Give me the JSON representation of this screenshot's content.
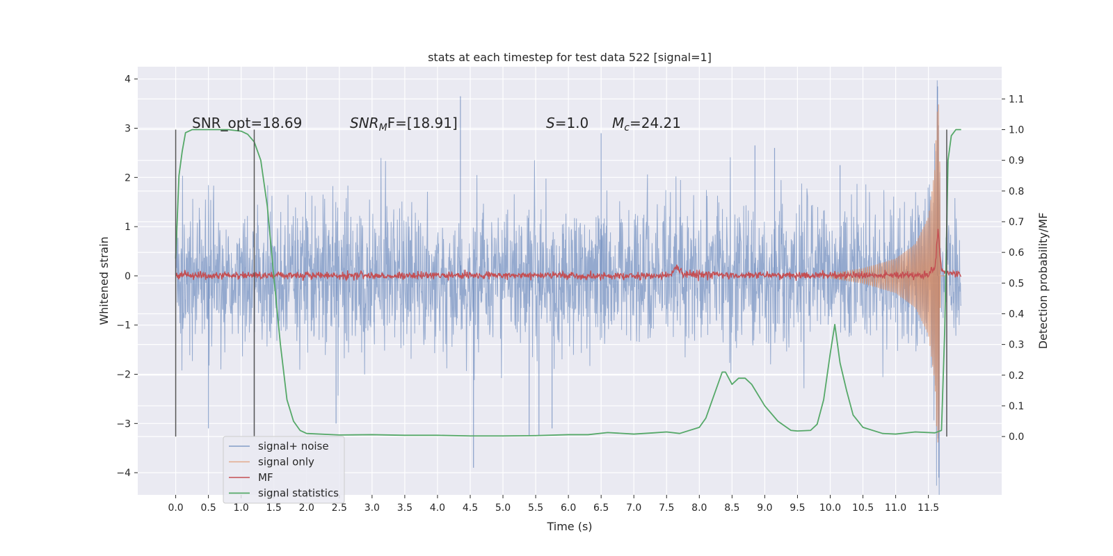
{
  "chart_data": {
    "type": "line",
    "title": "stats at each timestep for test data 522 [signal=1]",
    "xlabel": "Time (s)",
    "ylabel": "Whitened strain",
    "y2label": "Detection probability/MF",
    "xlim": [
      -0.58,
      12.62
    ],
    "ylim": [
      -4.45,
      4.25
    ],
    "y2lim": [
      -0.19,
      1.205
    ],
    "x_ticks": [
      "0.0",
      "0.5",
      "1.0",
      "1.5",
      "2.0",
      "2.5",
      "3.0",
      "3.5",
      "4.0",
      "4.5",
      "5.0",
      "5.5",
      "6.0",
      "6.5",
      "7.0",
      "7.5",
      "8.0",
      "8.5",
      "9.0",
      "9.5",
      "10.0",
      "10.5",
      "11.0",
      "11.5"
    ],
    "y_ticks": [
      "4",
      "3",
      "2",
      "1",
      "0",
      "−1",
      "−2",
      "−3",
      "−4"
    ],
    "y2_ticks": [
      "1.1",
      "1.0",
      "0.9",
      "0.8",
      "0.7",
      "0.6",
      "0.5",
      "0.4",
      "0.3",
      "0.2",
      "0.1",
      "0.0"
    ],
    "grid": true,
    "legend_position": "lower-left",
    "annotations": {
      "snr_opt": "SNR_opt=18.69",
      "snr_mf_base": "SNR",
      "snr_mf_sub": "M",
      "snr_mf_rest": "F=[18.91]",
      "s_label": "S",
      "s_value": "=1.0",
      "mc_base": "M",
      "mc_sub": "c",
      "mc_value": "=24.21"
    },
    "series": [
      {
        "name": "signal+ noise",
        "color": "#4c72b0",
        "style": "dense noise, roughly ±1.6 strain with spikes up to 3.9 and down to −4.1",
        "extremes": [
          [
            0.5,
            -3.1
          ],
          [
            1.2,
            -3.2
          ],
          [
            2.45,
            -3.0
          ],
          [
            4.35,
            3.65
          ],
          [
            4.55,
            -3.9
          ],
          [
            5.4,
            -3.25
          ],
          [
            5.55,
            -3.25
          ],
          [
            5.75,
            -3.1
          ],
          [
            6.5,
            2.9
          ],
          [
            8.85,
            2.65
          ],
          [
            9.15,
            2.6
          ],
          [
            10.15,
            2.25
          ],
          [
            11.64,
            3.85
          ],
          [
            11.66,
            -4.1
          ]
        ]
      },
      {
        "name": "signal only",
        "color": "#dd8452",
        "style": "chirp growing from ~0 at 10.0 s to peak amplitude ~3.3 at 11.63 s",
        "points": [
          [
            10.0,
            0.05
          ],
          [
            10.5,
            0.15
          ],
          [
            11.0,
            0.35
          ],
          [
            11.3,
            0.65
          ],
          [
            11.5,
            1.2
          ],
          [
            11.6,
            2.2
          ],
          [
            11.63,
            3.3
          ],
          [
            11.66,
            -3.55
          ],
          [
            11.7,
            0.0
          ]
        ]
      },
      {
        "name": "MF",
        "color": "#c44e52",
        "axis": "right",
        "style": "near 0.52 with small noise; bump at 7.6 s and spike at 11.65 s",
        "points": [
          [
            0.0,
            0.525
          ],
          [
            1.0,
            0.525
          ],
          [
            2.0,
            0.525
          ],
          [
            3.0,
            0.525
          ],
          [
            4.0,
            0.525
          ],
          [
            5.0,
            0.525
          ],
          [
            6.0,
            0.525
          ],
          [
            7.0,
            0.525
          ],
          [
            7.55,
            0.525
          ],
          [
            7.65,
            0.555
          ],
          [
            7.75,
            0.53
          ],
          [
            8.5,
            0.525
          ],
          [
            9.5,
            0.525
          ],
          [
            10.5,
            0.525
          ],
          [
            11.5,
            0.527
          ],
          [
            11.6,
            0.55
          ],
          [
            11.65,
            0.675
          ],
          [
            11.7,
            0.54
          ],
          [
            12.0,
            0.525
          ]
        ]
      },
      {
        "name": "signal statistics",
        "color": "#55a868",
        "axis": "right",
        "points": [
          [
            0.0,
            0.58
          ],
          [
            0.05,
            0.85
          ],
          [
            0.1,
            0.93
          ],
          [
            0.15,
            0.99
          ],
          [
            0.25,
            1.0
          ],
          [
            0.5,
            1.0
          ],
          [
            0.8,
            1.0
          ],
          [
            1.0,
            0.995
          ],
          [
            1.1,
            0.985
          ],
          [
            1.2,
            0.96
          ],
          [
            1.3,
            0.9
          ],
          [
            1.4,
            0.75
          ],
          [
            1.5,
            0.52
          ],
          [
            1.6,
            0.3
          ],
          [
            1.7,
            0.12
          ],
          [
            1.8,
            0.05
          ],
          [
            1.9,
            0.02
          ],
          [
            2.0,
            0.01
          ],
          [
            2.5,
            0.005
          ],
          [
            3.0,
            0.006
          ],
          [
            3.5,
            0.004
          ],
          [
            4.0,
            0.004
          ],
          [
            4.5,
            0.002
          ],
          [
            5.0,
            0.002
          ],
          [
            5.5,
            0.003
          ],
          [
            6.0,
            0.006
          ],
          [
            6.3,
            0.006
          ],
          [
            6.6,
            0.013
          ],
          [
            7.0,
            0.008
          ],
          [
            7.3,
            0.012
          ],
          [
            7.5,
            0.015
          ],
          [
            7.7,
            0.01
          ],
          [
            8.0,
            0.03
          ],
          [
            8.1,
            0.06
          ],
          [
            8.2,
            0.12
          ],
          [
            8.3,
            0.18
          ],
          [
            8.35,
            0.21
          ],
          [
            8.4,
            0.21
          ],
          [
            8.5,
            0.17
          ],
          [
            8.6,
            0.19
          ],
          [
            8.7,
            0.19
          ],
          [
            8.8,
            0.17
          ],
          [
            9.0,
            0.1
          ],
          [
            9.2,
            0.05
          ],
          [
            9.4,
            0.02
          ],
          [
            9.5,
            0.018
          ],
          [
            9.7,
            0.02
          ],
          [
            9.8,
            0.04
          ],
          [
            9.9,
            0.12
          ],
          [
            10.0,
            0.27
          ],
          [
            10.07,
            0.365
          ],
          [
            10.15,
            0.24
          ],
          [
            10.25,
            0.15
          ],
          [
            10.35,
            0.07
          ],
          [
            10.5,
            0.03
          ],
          [
            10.8,
            0.01
          ],
          [
            11.0,
            0.008
          ],
          [
            11.3,
            0.015
          ],
          [
            11.6,
            0.012
          ],
          [
            11.7,
            0.02
          ],
          [
            11.75,
            0.35
          ],
          [
            11.8,
            0.9
          ],
          [
            11.85,
            0.98
          ],
          [
            11.92,
            1.0
          ],
          [
            12.0,
            1.0
          ]
        ]
      }
    ],
    "vertical_markers": [
      0.0,
      1.2,
      11.78
    ],
    "marker_range": [
      0.0,
      1.0
    ]
  }
}
